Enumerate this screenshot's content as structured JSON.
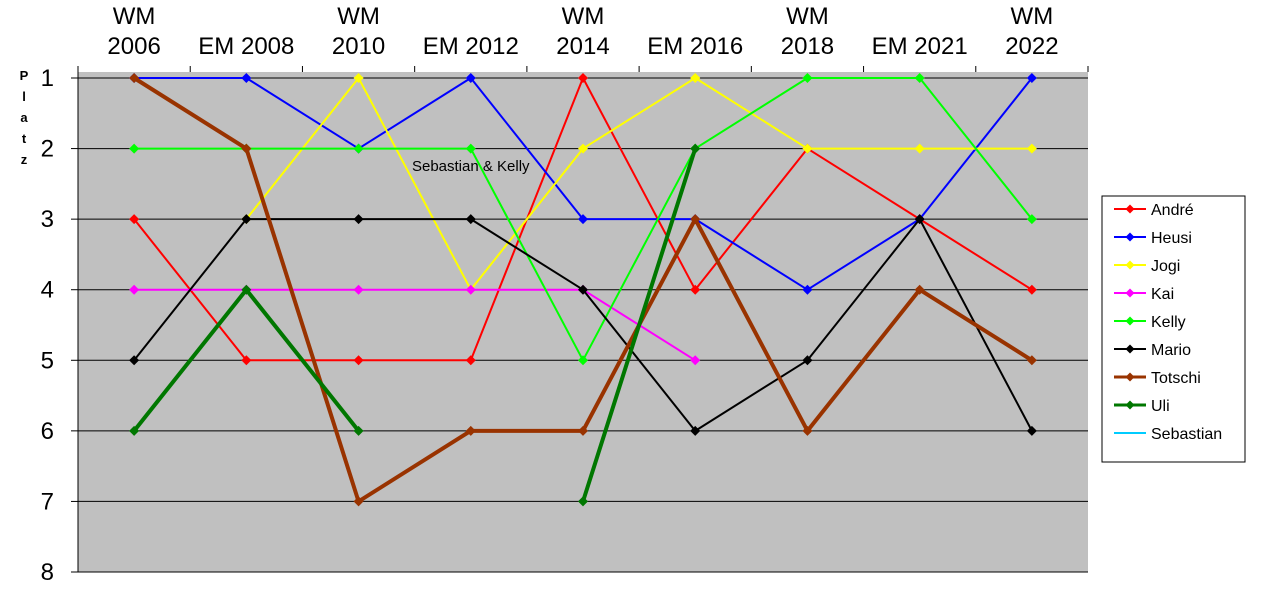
{
  "chart_data": {
    "type": "line",
    "categories": [
      [
        "WM",
        "2006"
      ],
      [
        "EM 2008"
      ],
      [
        "WM",
        "2010"
      ],
      [
        "EM 2012"
      ],
      [
        "WM",
        "2014"
      ],
      [
        "EM 2016"
      ],
      [
        "WM",
        "2018"
      ],
      [
        "EM 2021"
      ],
      [
        "WM",
        "2022"
      ]
    ],
    "ylabel": "Platz",
    "ylim": [
      1,
      8
    ],
    "y_inverted": true,
    "yticks": [
      "1",
      "2",
      "3",
      "4",
      "5",
      "6",
      "7",
      "8"
    ],
    "grid": true,
    "plot_background": "#C0C0C0",
    "legend_position": "right",
    "annotations": [
      {
        "text": "Sebastian & Kelly",
        "x_index": 3,
        "y": 2.25
      }
    ],
    "series": [
      {
        "name": "André",
        "color": "#FF0000",
        "width": 2,
        "marker": true,
        "values": [
          3,
          5,
          5,
          5,
          1,
          4,
          2,
          3,
          4
        ]
      },
      {
        "name": "Heusi",
        "color": "#0000FF",
        "width": 2,
        "marker": true,
        "values": [
          1,
          1,
          2,
          1,
          3,
          3,
          4,
          3,
          1
        ]
      },
      {
        "name": "Jogi",
        "color": "#FFFF00",
        "width": 2,
        "marker": true,
        "values": [
          null,
          3,
          1,
          4,
          2,
          1,
          2,
          2,
          2
        ]
      },
      {
        "name": "Kai",
        "color": "#FF00FF",
        "width": 2,
        "marker": true,
        "values": [
          4,
          4,
          4,
          4,
          4,
          5,
          null,
          null,
          null
        ]
      },
      {
        "name": "Kelly",
        "color": "#00FF00",
        "width": 2,
        "marker": true,
        "values": [
          2,
          2,
          2,
          2,
          5,
          2,
          1,
          1,
          3
        ]
      },
      {
        "name": "Mario",
        "color": "#000000",
        "width": 2,
        "marker": true,
        "values": [
          5,
          3,
          3,
          3,
          4,
          6,
          5,
          3,
          6
        ]
      },
      {
        "name": "Totschi",
        "color": "#993300",
        "width": 4,
        "marker": true,
        "values": [
          1,
          2,
          7,
          6,
          6,
          3,
          6,
          4,
          5
        ]
      },
      {
        "name": "Uli",
        "color": "#007700",
        "width": 4,
        "marker": true,
        "values": [
          6,
          4,
          6,
          null,
          7,
          2,
          null,
          null,
          null
        ]
      },
      {
        "name": "Sebastian",
        "color": "#00CCFF",
        "width": 2,
        "marker": false,
        "values": [
          null,
          null,
          null,
          null,
          null,
          null,
          null,
          null,
          null
        ]
      }
    ]
  }
}
